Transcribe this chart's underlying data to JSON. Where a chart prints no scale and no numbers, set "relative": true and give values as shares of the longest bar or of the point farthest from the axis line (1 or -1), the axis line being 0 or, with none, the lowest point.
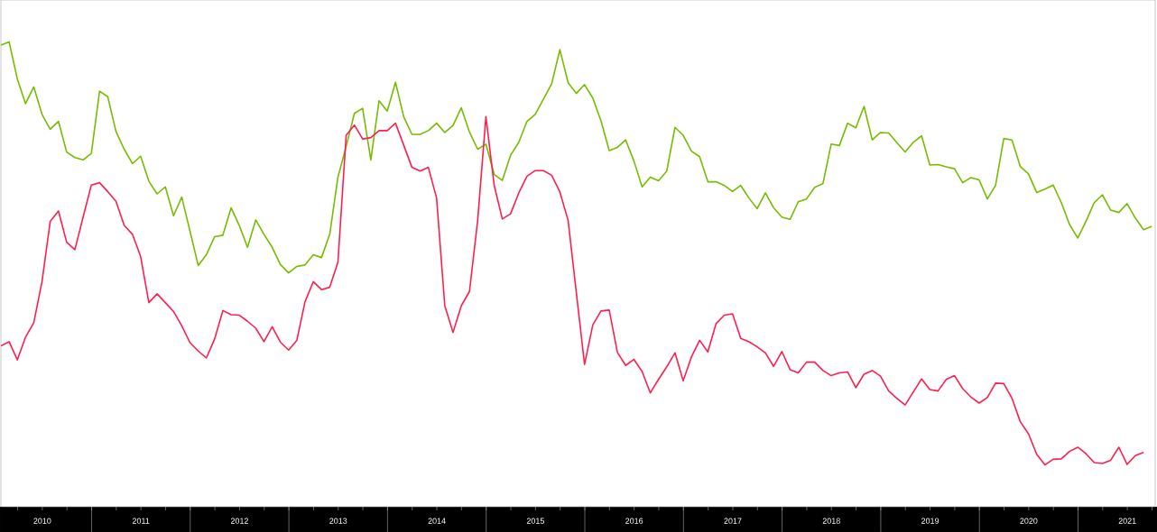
{
  "chart_data": {
    "type": "line",
    "relative": true,
    "x": [
      "2010-01-31",
      "2010-02-28",
      "2010-03-31",
      "2010-04-30",
      "2010-05-31",
      "2010-06-30",
      "2010-07-31",
      "2010-08-31",
      "2010-09-30",
      "2010-10-31",
      "2010-11-30",
      "2010-12-31",
      "2011-01-31",
      "2011-02-28",
      "2011-03-31",
      "2011-04-30",
      "2011-05-31",
      "2011-06-30",
      "2011-07-31",
      "2011-08-31",
      "2011-09-30",
      "2011-10-31",
      "2011-11-30",
      "2011-12-31",
      "2012-01-31",
      "2012-02-29",
      "2012-03-31",
      "2012-04-30",
      "2012-05-31",
      "2012-06-30",
      "2012-07-31",
      "2012-08-31",
      "2012-09-30",
      "2012-10-31",
      "2012-11-30",
      "2012-12-31",
      "2013-01-31",
      "2013-02-28",
      "2013-03-31",
      "2013-04-30",
      "2013-05-31",
      "2013-06-30",
      "2013-07-31",
      "2013-08-31",
      "2013-09-30",
      "2013-10-31",
      "2013-11-30",
      "2013-12-31",
      "2014-01-31",
      "2014-02-28",
      "2014-03-31",
      "2014-04-30",
      "2014-05-31",
      "2014-06-30",
      "2014-07-31",
      "2014-08-31",
      "2014-09-30",
      "2014-10-31",
      "2014-11-30",
      "2014-12-31",
      "2015-01-31",
      "2015-02-28",
      "2015-03-31",
      "2015-04-30",
      "2015-05-31",
      "2015-06-30",
      "2015-07-31",
      "2015-08-31",
      "2015-09-30",
      "2015-10-31",
      "2015-11-30",
      "2015-12-31",
      "2016-01-31",
      "2016-02-29",
      "2016-03-31",
      "2016-04-30",
      "2016-05-31",
      "2016-06-30",
      "2016-07-31",
      "2016-08-31",
      "2016-09-30",
      "2016-10-31",
      "2016-11-30",
      "2016-12-31",
      "2017-01-31",
      "2017-02-28",
      "2017-03-31",
      "2017-04-30",
      "2017-05-31",
      "2017-06-30",
      "2017-07-31",
      "2017-08-31",
      "2017-09-30",
      "2017-10-31",
      "2017-11-30",
      "2017-12-31",
      "2018-01-31",
      "2018-02-28",
      "2018-03-31",
      "2018-04-30",
      "2018-05-31",
      "2018-06-30",
      "2018-07-31",
      "2018-08-31",
      "2018-09-30",
      "2018-10-31",
      "2018-11-30",
      "2018-12-31",
      "2019-01-31",
      "2019-02-28",
      "2019-03-31",
      "2019-04-30",
      "2019-05-31",
      "2019-06-30",
      "2019-07-31",
      "2019-08-31",
      "2019-09-30",
      "2019-10-31",
      "2019-11-30",
      "2019-12-31",
      "2020-01-31",
      "2020-02-29",
      "2020-03-31",
      "2020-04-30",
      "2020-05-31",
      "2020-06-30",
      "2020-07-31",
      "2020-08-31",
      "2020-09-30",
      "2020-10-31",
      "2020-11-30",
      "2020-12-31",
      "2021-01-31",
      "2021-02-28",
      "2021-03-31",
      "2021-04-30",
      "2021-05-31",
      "2021-06-30",
      "2021-07-31",
      "2021-08-31",
      "2021-09-30"
    ],
    "xlim": [
      "2010-01-31",
      "2021-10-13"
    ],
    "xticks": [
      {
        "value": "2010-04-01",
        "label": null
      },
      {
        "value": "2010-07-01",
        "label": "2010"
      },
      {
        "value": "2010-10-01",
        "label": null
      },
      {
        "value": "2011-01-01",
        "label": null
      },
      {
        "value": "2011-04-01",
        "label": null
      },
      {
        "value": "2011-07-01",
        "label": "2011"
      },
      {
        "value": "2011-10-01",
        "label": null
      },
      {
        "value": "2012-01-01",
        "label": null
      },
      {
        "value": "2012-04-01",
        "label": null
      },
      {
        "value": "2012-07-01",
        "label": "2012"
      },
      {
        "value": "2012-10-01",
        "label": null
      },
      {
        "value": "2013-01-01",
        "label": null
      },
      {
        "value": "2013-04-01",
        "label": null
      },
      {
        "value": "2013-07-01",
        "label": "2013"
      },
      {
        "value": "2013-10-01",
        "label": null
      },
      {
        "value": "2014-01-01",
        "label": null
      },
      {
        "value": "2014-04-01",
        "label": null
      },
      {
        "value": "2014-07-01",
        "label": "2014"
      },
      {
        "value": "2014-10-01",
        "label": null
      },
      {
        "value": "2015-01-01",
        "label": null
      },
      {
        "value": "2015-04-01",
        "label": null
      },
      {
        "value": "2015-07-01",
        "label": "2015"
      },
      {
        "value": "2015-10-01",
        "label": null
      },
      {
        "value": "2016-01-01",
        "label": null
      },
      {
        "value": "2016-04-01",
        "label": null
      },
      {
        "value": "2016-07-01",
        "label": "2016"
      },
      {
        "value": "2016-10-01",
        "label": null
      },
      {
        "value": "2017-01-01",
        "label": null
      },
      {
        "value": "2017-04-01",
        "label": null
      },
      {
        "value": "2017-07-01",
        "label": "2017"
      },
      {
        "value": "2017-10-01",
        "label": null
      },
      {
        "value": "2018-01-01",
        "label": null
      },
      {
        "value": "2018-04-01",
        "label": null
      },
      {
        "value": "2018-07-01",
        "label": "2018"
      },
      {
        "value": "2018-10-01",
        "label": null
      },
      {
        "value": "2019-01-01",
        "label": null
      },
      {
        "value": "2019-04-01",
        "label": null
      },
      {
        "value": "2019-07-01",
        "label": "2019"
      },
      {
        "value": "2019-10-01",
        "label": null
      },
      {
        "value": "2020-01-01",
        "label": null
      },
      {
        "value": "2020-04-01",
        "label": null
      },
      {
        "value": "2020-07-01",
        "label": "2020"
      },
      {
        "value": "2020-10-01",
        "label": null
      },
      {
        "value": "2021-01-01",
        "label": null
      },
      {
        "value": "2021-04-01",
        "label": null
      },
      {
        "value": "2021-07-01",
        "label": "2021"
      },
      {
        "value": "2021-10-01",
        "label": null
      }
    ],
    "series": [
      {
        "color": "#76bc00",
        "values": [
          0.993,
          1.0,
          0.92,
          0.867,
          0.903,
          0.844,
          0.812,
          0.829,
          0.763,
          0.751,
          0.746,
          0.76,
          0.894,
          0.882,
          0.807,
          0.769,
          0.738,
          0.754,
          0.7,
          0.673,
          0.688,
          0.626,
          0.666,
          0.593,
          0.519,
          0.542,
          0.581,
          0.584,
          0.643,
          0.605,
          0.558,
          0.617,
          0.586,
          0.558,
          0.521,
          0.503,
          0.517,
          0.52,
          0.542,
          0.536,
          0.586,
          0.709,
          0.775,
          0.846,
          0.857,
          0.746,
          0.873,
          0.851,
          0.913,
          0.839,
          0.801,
          0.801,
          0.809,
          0.825,
          0.805,
          0.82,
          0.858,
          0.806,
          0.769,
          0.78,
          0.715,
          0.702,
          0.756,
          0.784,
          0.829,
          0.844,
          0.877,
          0.91,
          0.983,
          0.912,
          0.889,
          0.908,
          0.879,
          0.83,
          0.766,
          0.773,
          0.789,
          0.744,
          0.688,
          0.709,
          0.701,
          0.722,
          0.816,
          0.799,
          0.765,
          0.753,
          0.699,
          0.699,
          0.691,
          0.678,
          0.691,
          0.664,
          0.641,
          0.675,
          0.643,
          0.623,
          0.618,
          0.656,
          0.662,
          0.687,
          0.695,
          0.78,
          0.777,
          0.825,
          0.815,
          0.861,
          0.789,
          0.805,
          0.804,
          0.783,
          0.763,
          0.784,
          0.798,
          0.735,
          0.736,
          0.731,
          0.727,
          0.697,
          0.708,
          0.703,
          0.662,
          0.691,
          0.792,
          0.789,
          0.732,
          0.716,
          0.676,
          0.683,
          0.692,
          0.654,
          0.607,
          0.578,
          0.614,
          0.654,
          0.671,
          0.638,
          0.633,
          0.652,
          0.621,
          0.596,
          0.603
        ]
      },
      {
        "color": "#ff1f4f",
        "values": [
          0.346,
          0.355,
          0.316,
          0.365,
          0.396,
          0.484,
          0.614,
          0.636,
          0.569,
          0.553,
          0.623,
          0.692,
          0.697,
          0.678,
          0.657,
          0.605,
          0.586,
          0.538,
          0.439,
          0.458,
          0.439,
          0.42,
          0.389,
          0.353,
          0.335,
          0.32,
          0.361,
          0.422,
          0.413,
          0.412,
          0.399,
          0.384,
          0.355,
          0.387,
          0.354,
          0.337,
          0.358,
          0.441,
          0.484,
          0.467,
          0.472,
          0.526,
          0.799,
          0.821,
          0.791,
          0.794,
          0.809,
          0.809,
          0.825,
          0.778,
          0.73,
          0.722,
          0.73,
          0.664,
          0.432,
          0.375,
          0.432,
          0.463,
          0.616,
          0.839,
          0.692,
          0.619,
          0.63,
          0.675,
          0.711,
          0.723,
          0.723,
          0.713,
          0.677,
          0.616,
          0.461,
          0.306,
          0.391,
          0.421,
          0.423,
          0.332,
          0.304,
          0.317,
          0.291,
          0.245,
          0.274,
          0.301,
          0.331,
          0.271,
          0.322,
          0.358,
          0.333,
          0.394,
          0.412,
          0.415,
          0.362,
          0.355,
          0.344,
          0.331,
          0.302,
          0.334,
          0.295,
          0.288,
          0.311,
          0.311,
          0.293,
          0.282,
          0.288,
          0.29,
          0.256,
          0.285,
          0.293,
          0.281,
          0.249,
          0.233,
          0.219,
          0.247,
          0.275,
          0.252,
          0.249,
          0.274,
          0.282,
          0.254,
          0.236,
          0.223,
          0.235,
          0.266,
          0.265,
          0.233,
          0.183,
          0.157,
          0.113,
          0.09,
          0.102,
          0.103,
          0.119,
          0.128,
          0.114,
          0.095,
          0.093,
          0.1,
          0.128,
          0.091,
          0.11,
          0.117,
          null
        ]
      }
    ]
  }
}
